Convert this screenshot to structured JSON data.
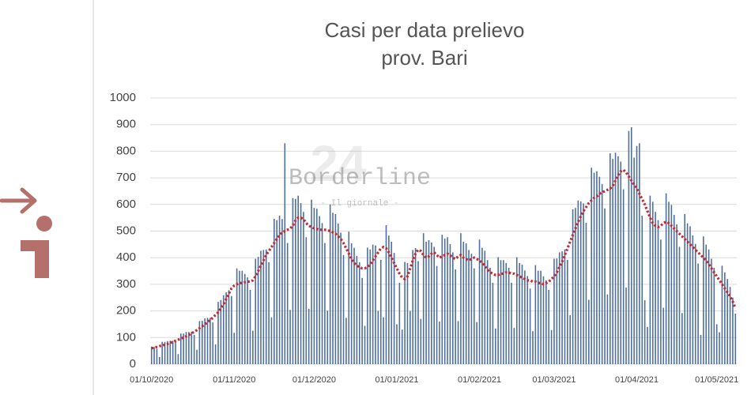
{
  "chart_data": {
    "type": "bar",
    "title": [
      "Casi per data prelievo",
      "prov. Bari"
    ],
    "watermark": [
      "Borderline",
      "24",
      "- Il giornale -"
    ],
    "categories": [
      "01/10/2020",
      null,
      null,
      null,
      null,
      null,
      null,
      null,
      null,
      null,
      null,
      null,
      null,
      null,
      null,
      null,
      null,
      null,
      null,
      null,
      null,
      null,
      null,
      null,
      null,
      null,
      null,
      null,
      null,
      null,
      null,
      "01/11/2020",
      null,
      null,
      null,
      null,
      null,
      null,
      null,
      null,
      null,
      null,
      null,
      null,
      null,
      null,
      null,
      null,
      null,
      null,
      null,
      null,
      null,
      null,
      null,
      null,
      null,
      null,
      null,
      null,
      null,
      "01/12/2020",
      null,
      null,
      null,
      null,
      null,
      null,
      null,
      null,
      null,
      null,
      null,
      null,
      null,
      null,
      null,
      null,
      null,
      null,
      null,
      null,
      null,
      null,
      null,
      null,
      null,
      null,
      null,
      null,
      null,
      null,
      "01/01/2021",
      null,
      null,
      null,
      null,
      null,
      null,
      null,
      null,
      null,
      null,
      null,
      null,
      null,
      null,
      null,
      null,
      null,
      null,
      null,
      null,
      null,
      null,
      null,
      null,
      null,
      null,
      null,
      null,
      null,
      null,
      "01/02/2021",
      null,
      null,
      null,
      null,
      null,
      null,
      null,
      null,
      null,
      null,
      null,
      null,
      null,
      null,
      null,
      null,
      null,
      null,
      null,
      null,
      null,
      null,
      null,
      null,
      null,
      null,
      null,
      "01/03/2021",
      null,
      null,
      null,
      null,
      null,
      null,
      null,
      null,
      null,
      null,
      null,
      null,
      null,
      null,
      null,
      null,
      null,
      null,
      null,
      null,
      null,
      null,
      null,
      null,
      null,
      null,
      null,
      null,
      null,
      null,
      "01/04/2021",
      null,
      null,
      null,
      null,
      null,
      null,
      null,
      null,
      null,
      null,
      null,
      null,
      null,
      null,
      null,
      null,
      null,
      null,
      null,
      null,
      null,
      null,
      null,
      null,
      null,
      null,
      null,
      null,
      null,
      "01/05/2021",
      null,
      null,
      null,
      null,
      null,
      null,
      null
    ],
    "series": [
      {
        "type": "bar",
        "color": "#4f6f9c",
        "values": [
          66,
          65,
          58,
          27,
          84,
          84,
          87,
          88,
          88,
          83,
          38,
          115,
          115,
          121,
          121,
          122,
          110,
          54,
          162,
          163,
          172,
          174,
          174,
          157,
          74,
          234,
          241,
          259,
          270,
          278,
          256,
          118,
          360,
          351,
          351,
          339,
          326,
          279,
          126,
          396,
          403,
          426,
          429,
          431,
          383,
          176,
          546,
          541,
          558,
          545,
          830,
          455,
          204,
          624,
          621,
          633,
          605,
          572,
          477,
          208,
          618,
          587,
          584,
          556,
          530,
          455,
          201,
          600,
          569,
          564,
          528,
          494,
          410,
          174,
          498,
          454,
          437,
          407,
          383,
          324,
          144,
          438,
          431,
          449,
          446,
          200,
          392,
          176,
          522,
          483,
          460,
          418,
          150,
          306,
          130,
          384,
          380,
          200,
          429,
          436,
          387,
          170,
          492,
          460,
          466,
          457,
          441,
          369,
          160,
          486,
          472,
          477,
          451,
          420,
          356,
          162,
          492,
          460,
          454,
          429,
          415,
          360,
          158,
          468,
          437,
          426,
          391,
          362,
          306,
          134,
          402,
          391,
          391,
          380,
          362,
          306,
          136,
          402,
          380,
          374,
          352,
          331,
          284,
          124,
          372,
          351,
          351,
          330,
          315,
          279,
          128,
          396,
          397,
          420,
          424,
          431,
          392,
          184,
          582,
          587,
          615,
          611,
          604,
          531,
          242,
          738,
          719,
          725,
          704,
          677,
          585,
          262,
          792,
          771,
          794,
          781,
          761,
          657,
          288,
          876,
          890,
          776,
          820,
          830,
          558,
          240,
          140,
          633,
          610,
          572,
          541,
          468,
          212,
          642,
          610,
          598,
          561,
          525,
          441,
          192,
          564,
          529,
          518,
          484,
          452,
          378,
          110,
          480,
          449,
          431,
          396,
          362,
          150,
          120,
          370,
          345,
          320,
          290,
          250,
          190
        ]
      },
      {
        "type": "line",
        "color": "#c8262c",
        "values": [
          60,
          62,
          65,
          68,
          70,
          73,
          76,
          80,
          84,
          88,
          92,
          96,
          100,
          105,
          110,
          116,
          122,
          128,
          135,
          142,
          150,
          158,
          166,
          175,
          185,
          195,
          210,
          225,
          245,
          265,
          285,
          295,
          300,
          305,
          305,
          308,
          310,
          310,
          315,
          330,
          350,
          370,
          390,
          410,
          425,
          440,
          455,
          470,
          485,
          495,
          500,
          505,
          510,
          520,
          540,
          550,
          550,
          545,
          530,
          520,
          515,
          510,
          508,
          505,
          505,
          505,
          503,
          500,
          495,
          490,
          480,
          470,
          455,
          435,
          415,
          395,
          380,
          370,
          365,
          360,
          360,
          365,
          375,
          390,
          405,
          420,
          435,
          440,
          435,
          420,
          400,
          380,
          360,
          340,
          325,
          320,
          330,
          360,
          390,
          415,
          430,
          425,
          410,
          400,
          405,
          415,
          420,
          410,
          400,
          405,
          410,
          415,
          410,
          400,
          395,
          405,
          410,
          400,
          395,
          390,
          395,
          400,
          395,
          390,
          380,
          370,
          355,
          345,
          340,
          335,
          335,
          340,
          340,
          345,
          345,
          340,
          340,
          335,
          330,
          325,
          320,
          315,
          315,
          310,
          310,
          305,
          305,
          300,
          305,
          310,
          320,
          330,
          345,
          365,
          385,
          410,
          435,
          460,
          485,
          510,
          535,
          555,
          575,
          590,
          605,
          615,
          625,
          630,
          640,
          645,
          650,
          655,
          660,
          670,
          690,
          710,
          725,
          730,
          720,
          705,
          690,
          675,
          660,
          640,
          620,
          600,
          575,
          550,
          530,
          520,
          515,
          520,
          530,
          535,
          530,
          520,
          510,
          500,
          490,
          480,
          470,
          460,
          450,
          440,
          430,
          420,
          410,
          400,
          390,
          375,
          360,
          345,
          330,
          315,
          300,
          285,
          270,
          255,
          235,
          210
        ]
      }
    ],
    "ylim": [
      0,
      1000
    ],
    "yticks": [
      0,
      100,
      200,
      300,
      400,
      500,
      600,
      700,
      800,
      900,
      1000
    ],
    "grid": true
  }
}
